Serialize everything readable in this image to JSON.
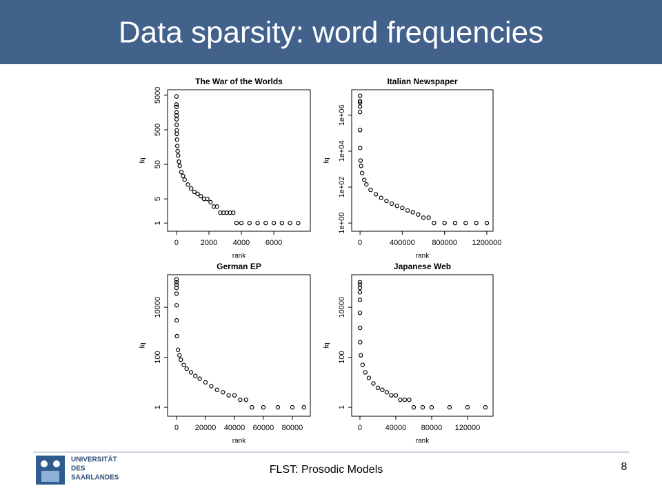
{
  "header": {
    "title": "Data sparsity: word frequencies"
  },
  "chart_data": [
    {
      "type": "scatter",
      "title": "The War of the Worlds",
      "xlabel": "rank",
      "ylabel": "fq",
      "color": "#000000",
      "log_y": true,
      "xlim": [
        -550,
        8250
      ],
      "ylim": [
        0.58,
        7200
      ],
      "xticks": [
        0,
        2000,
        4000,
        6000
      ],
      "yticks": [
        1,
        5,
        50,
        500,
        5000
      ],
      "x": [
        1,
        2,
        3,
        4,
        5,
        7,
        10,
        15,
        20,
        30,
        50,
        70,
        100,
        150,
        200,
        300,
        400,
        500,
        700,
        900,
        1100,
        1300,
        1500,
        1700,
        1900,
        2100,
        2300,
        2500,
        2700,
        2900,
        3100,
        3300,
        3500,
        3700,
        4000,
        4500,
        5000,
        5500,
        6000,
        6500,
        7000,
        7500
      ],
      "y": [
        4600,
        2700,
        2300,
        1600,
        1300,
        1000,
        700,
        480,
        380,
        260,
        170,
        120,
        90,
        60,
        45,
        30,
        23,
        18,
        13,
        10,
        8,
        7,
        6,
        5,
        5,
        4,
        3,
        3,
        2,
        2,
        2,
        2,
        2,
        1,
        1,
        1,
        1,
        1,
        1,
        1,
        1,
        1
      ]
    },
    {
      "type": "scatter",
      "title": "Italian Newspaper",
      "xlabel": "rank",
      "ylabel": "fq",
      "color": "#000000",
      "log_y": true,
      "xlim": [
        -79000,
        1259000
      ],
      "ylim": [
        0.35,
        26000000
      ],
      "xticks": [
        0,
        400000,
        800000,
        1200000
      ],
      "yticks": [
        {
          "value": 1,
          "label": "1e+00"
        },
        {
          "value": 100,
          "label": "1e+02"
        },
        {
          "value": 10000,
          "label": "1e+04"
        },
        {
          "value": 1000000,
          "label": "1e+06"
        }
      ],
      "x": [
        1,
        2,
        3,
        5,
        10,
        100,
        1000,
        5000,
        10000,
        20000,
        40000,
        60000,
        100000,
        150000,
        200000,
        250000,
        300000,
        350000,
        400000,
        450000,
        500000,
        550000,
        600000,
        650000,
        700000,
        800000,
        900000,
        1000000,
        1100000,
        1200000
      ],
      "y": [
        12000000,
        6000000,
        5000000,
        3000000,
        1500000,
        150000,
        15000,
        3000,
        1500,
        600,
        250,
        140,
        70,
        40,
        25,
        17,
        12,
        9,
        7,
        5,
        4,
        3,
        2,
        2,
        1,
        1,
        1,
        1,
        1,
        1
      ]
    },
    {
      "type": "scatter",
      "title": "German EP",
      "xlabel": "rank",
      "ylabel": "fq",
      "color": "#000000",
      "log_y": true,
      "xlim": [
        -6200,
        92400
      ],
      "ylim": [
        0.44,
        200000
      ],
      "xticks": [
        0,
        20000,
        40000,
        60000,
        80000
      ],
      "yticks": [
        1,
        100,
        10000
      ],
      "x": [
        1,
        2,
        3,
        5,
        10,
        30,
        100,
        300,
        1000,
        2000,
        3000,
        5000,
        7000,
        10000,
        13000,
        16000,
        20000,
        24000,
        28000,
        32000,
        36000,
        40000,
        44000,
        48000,
        52000,
        60000,
        70000,
        80000,
        88000
      ],
      "y": [
        130000,
        100000,
        80000,
        60000,
        35000,
        12000,
        3000,
        700,
        200,
        120,
        80,
        50,
        35,
        25,
        18,
        14,
        10,
        7,
        5,
        4,
        3,
        3,
        2,
        2,
        1,
        1,
        1,
        1,
        1
      ]
    },
    {
      "type": "scatter",
      "title": "Japanese Web",
      "xlabel": "rank",
      "ylabel": "fq",
      "color": "#000000",
      "log_y": true,
      "xlim": [
        -9200,
        148500
      ],
      "ylim": [
        0.44,
        200000
      ],
      "xticks": [
        0,
        40000,
        80000,
        120000
      ],
      "yticks": [
        1,
        100,
        10000
      ],
      "x": [
        1,
        2,
        3,
        5,
        10,
        30,
        100,
        300,
        1000,
        3000,
        6000,
        10000,
        15000,
        20000,
        25000,
        30000,
        35000,
        40000,
        45000,
        50000,
        55000,
        60000,
        70000,
        80000,
        100000,
        120000,
        140000
      ],
      "y": [
        100000,
        80000,
        60000,
        40000,
        20000,
        6000,
        1500,
        400,
        120,
        50,
        25,
        15,
        9,
        6,
        5,
        4,
        3,
        3,
        2,
        2,
        2,
        1,
        1,
        1,
        1,
        1,
        1
      ]
    }
  ],
  "footer": {
    "text": "FLST: Prosodic Models",
    "page": "8",
    "logo": [
      "UNIVERSITÄT",
      "DES",
      "SAARLANDES"
    ]
  }
}
